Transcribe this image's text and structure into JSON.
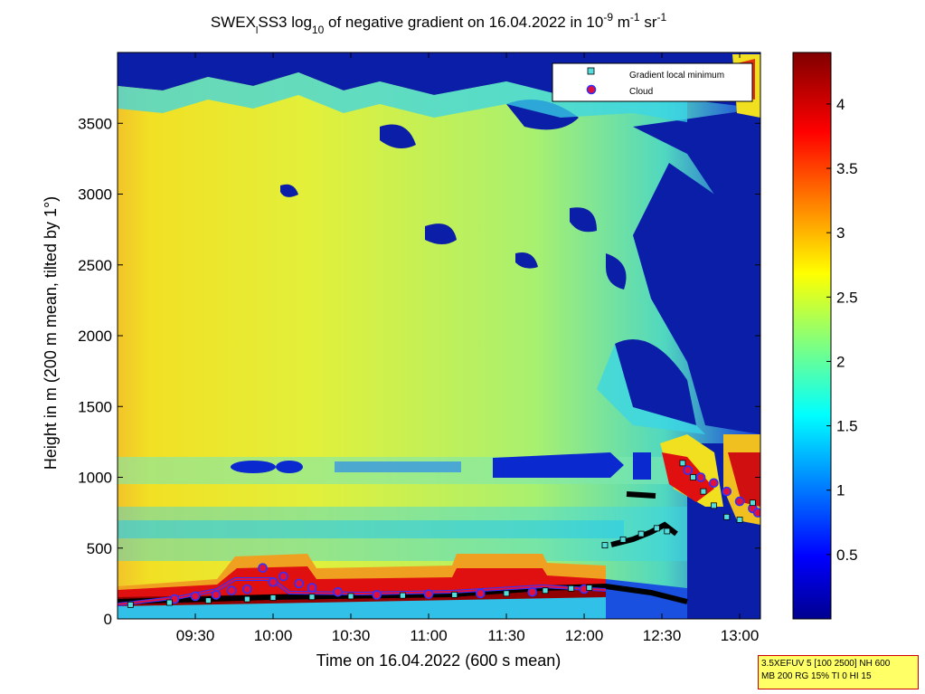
{
  "chart_data": {
    "type": "heatmap",
    "title": {
      "prefix": "SWEX",
      "sub": "l",
      "mid": "SS3 log",
      "sub2": "10",
      "rest": " of negative gradient on 16.04.2022 in 10",
      "exp1": "-9",
      "unit_m": " m",
      "exp2": "-1",
      "unit_sr": " sr",
      "exp3": "-1"
    },
    "xlabel": "Time on 16.04.2022 (600 s mean)",
    "ylabel": "Height in m (200 m mean, tilted by 1°)",
    "x_ticks": [
      "09:30",
      "10:00",
      "10:30",
      "11:00",
      "11:30",
      "12:00",
      "12:30",
      "13:00"
    ],
    "x_tick_minutes": [
      570,
      600,
      630,
      660,
      690,
      720,
      750,
      780
    ],
    "xlim_minutes": [
      540,
      788
    ],
    "y_ticks": [
      "0",
      "500",
      "1000",
      "1500",
      "2000",
      "2500",
      "3000",
      "3500"
    ],
    "y_tick_values": [
      0,
      500,
      1000,
      1500,
      2000,
      2500,
      3000,
      3500
    ],
    "ylim": [
      0,
      4000
    ],
    "colorbar": {
      "ticks": [
        "0.5",
        "1",
        "1.5",
        "2",
        "2.5",
        "3",
        "3.5",
        "4"
      ],
      "values": [
        0.5,
        1,
        1.5,
        2,
        2.5,
        3,
        3.5,
        4
      ],
      "range": [
        0,
        4.4
      ],
      "colormap": "jet"
    },
    "legend": {
      "placement": "top-right",
      "entries": [
        {
          "label": "Gradient local minimum",
          "marker": "square",
          "color": "#55dddd"
        },
        {
          "label": "Cloud",
          "marker": "circle",
          "color": "#e0103a",
          "edge": "#3030ff"
        }
      ]
    },
    "series": [
      {
        "name": "Cloud",
        "points": [
          [
            562,
            140
          ],
          [
            570,
            160
          ],
          [
            578,
            170
          ],
          [
            584,
            200
          ],
          [
            590,
            210
          ],
          [
            596,
            360
          ],
          [
            600,
            260
          ],
          [
            604,
            300
          ],
          [
            610,
            250
          ],
          [
            615,
            220
          ],
          [
            625,
            190
          ],
          [
            640,
            170
          ],
          [
            660,
            175
          ],
          [
            680,
            180
          ],
          [
            700,
            190
          ],
          [
            720,
            210
          ],
          [
            760,
            1050
          ],
          [
            765,
            1000
          ],
          [
            770,
            960
          ],
          [
            775,
            900
          ],
          [
            780,
            830
          ],
          [
            785,
            780
          ],
          [
            787,
            750
          ]
        ]
      },
      {
        "name": "Gradient local minimum",
        "points": [
          [
            545,
            100
          ],
          [
            560,
            115
          ],
          [
            575,
            130
          ],
          [
            590,
            140
          ],
          [
            600,
            150
          ],
          [
            615,
            155
          ],
          [
            630,
            160
          ],
          [
            650,
            165
          ],
          [
            670,
            170
          ],
          [
            690,
            180
          ],
          [
            705,
            200
          ],
          [
            715,
            215
          ],
          [
            722,
            220
          ],
          [
            728,
            520
          ],
          [
            735,
            560
          ],
          [
            742,
            600
          ],
          [
            748,
            640
          ],
          [
            752,
            620
          ],
          [
            758,
            1100
          ],
          [
            762,
            1000
          ],
          [
            766,
            900
          ],
          [
            770,
            800
          ],
          [
            775,
            720
          ],
          [
            780,
            700
          ],
          [
            785,
            820
          ]
        ]
      }
    ]
  },
  "info_box": {
    "line1": "3.5XEFUV 5 [100 2500] NH 600",
    "line2": "MB 200 RG 15% TI 0 HI 15"
  }
}
